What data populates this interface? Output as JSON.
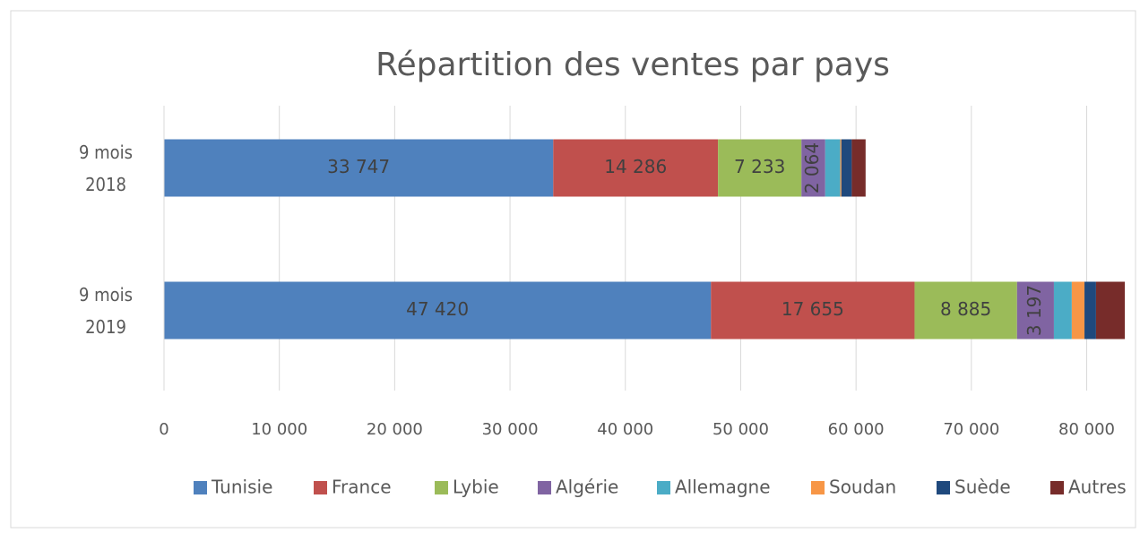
{
  "chart_data": {
    "type": "stacked_barh",
    "title": "Répartition des ventes par pays",
    "categories": [
      "9 mois 2018",
      "9 mois 2019"
    ],
    "series": [
      {
        "name": "Tunisie",
        "color": "#4f81bd",
        "values": [
          33747,
          47420
        ],
        "value_labels": [
          "33 747",
          "47 420"
        ]
      },
      {
        "name": "France",
        "color": "#c0504d",
        "values": [
          14286,
          17655
        ],
        "value_labels": [
          "14 286",
          "17 655"
        ]
      },
      {
        "name": "Lybie",
        "color": "#9bbb59",
        "values": [
          7233,
          8885
        ],
        "value_labels": [
          "7 233",
          "8 885"
        ]
      },
      {
        "name": "Algérie",
        "color": "#8064a2",
        "values": [
          2064,
          3197
        ],
        "value_labels": [
          "2 064",
          "3 197"
        ]
      },
      {
        "name": "Allemagne",
        "color": "#4bacc6",
        "values": [
          1300,
          1550
        ]
      },
      {
        "name": "Soudan",
        "color": "#f79646",
        "values": [
          100,
          1100
        ]
      },
      {
        "name": "Suède",
        "color": "#1f497d",
        "values": [
          900,
          1000
        ]
      },
      {
        "name": "Autres",
        "color": "#772c2a",
        "values": [
          1200,
          2500
        ]
      }
    ],
    "xlim": [
      0,
      83300
    ],
    "xticks": [
      0,
      {
        "value": 10000,
        "label": "10 000"
      },
      {
        "value": 20000,
        "label": "20 000"
      },
      {
        "value": 30000,
        "label": "30 000"
      },
      {
        "value": 40000,
        "label": "40 000"
      },
      {
        "value": 50000,
        "label": "50 000"
      },
      {
        "value": 60000,
        "label": "60 000"
      },
      {
        "value": 70000,
        "label": "70 000"
      },
      {
        "value": 80000,
        "label": "80 000"
      }
    ],
    "grid": true,
    "legend": "bottom"
  }
}
